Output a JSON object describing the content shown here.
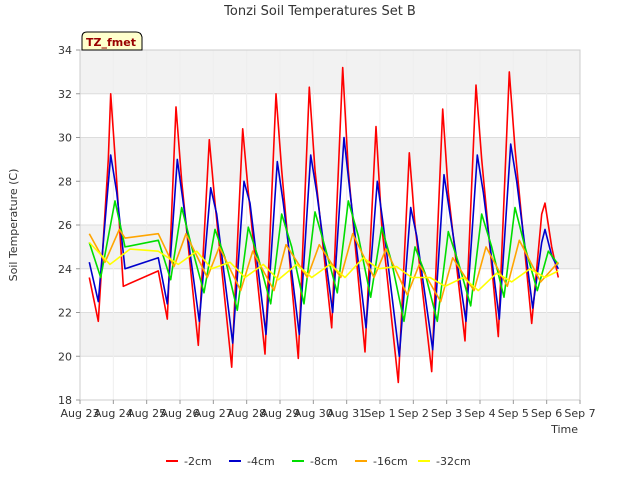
{
  "chart_data": {
    "type": "line",
    "title": "Tonzi Soil Temperatures Set B",
    "xlabel": "Time",
    "ylabel": "Soil Temperature (C)",
    "badge": "TZ_fmet",
    "ylim": [
      18,
      34
    ],
    "xlim": [
      0,
      15
    ],
    "yticks": [
      18,
      20,
      22,
      24,
      26,
      28,
      30,
      32,
      34
    ],
    "xticks": [
      0,
      1,
      2,
      3,
      4,
      5,
      6,
      7,
      8,
      9,
      10,
      11,
      12,
      13,
      14,
      15
    ],
    "xtick_labels": [
      "Aug 23",
      "Aug 24",
      "Aug 25",
      "Aug 26",
      "Aug 27",
      "Aug 28",
      "Aug 29",
      "Aug 30",
      "Aug 31",
      "Sep 1",
      "Sep 2",
      "Sep 3",
      "Sep 4",
      "Sep 5",
      "Sep 6",
      "Sep 7"
    ],
    "grid": true,
    "legend_position": "bottom",
    "series": [
      {
        "name": "-2cm",
        "color": "#ff0000",
        "points": [
          [
            0.28,
            23.6
          ],
          [
            0.55,
            21.6
          ],
          [
            0.85,
            29.0
          ],
          [
            0.92,
            32.0
          ],
          [
            1.08,
            28.5
          ],
          [
            1.3,
            23.2
          ],
          [
            2.35,
            23.9
          ],
          [
            2.62,
            21.7
          ],
          [
            2.88,
            31.4
          ],
          [
            3.05,
            28.0
          ],
          [
            3.55,
            20.5
          ],
          [
            3.88,
            29.9
          ],
          [
            4.05,
            27.0
          ],
          [
            4.55,
            19.5
          ],
          [
            4.88,
            30.4
          ],
          [
            5.05,
            27.5
          ],
          [
            5.55,
            20.1
          ],
          [
            5.88,
            32.0
          ],
          [
            6.05,
            28.5
          ],
          [
            6.55,
            19.9
          ],
          [
            6.88,
            32.3
          ],
          [
            7.05,
            28.5
          ],
          [
            7.55,
            21.3
          ],
          [
            7.88,
            33.2
          ],
          [
            8.05,
            28.5
          ],
          [
            8.55,
            20.2
          ],
          [
            8.88,
            30.5
          ],
          [
            9.05,
            26.0
          ],
          [
            9.55,
            18.8
          ],
          [
            9.88,
            29.3
          ],
          [
            10.05,
            26.0
          ],
          [
            10.55,
            19.3
          ],
          [
            10.88,
            31.3
          ],
          [
            11.05,
            27.5
          ],
          [
            11.55,
            20.7
          ],
          [
            11.88,
            32.4
          ],
          [
            12.05,
            29.0
          ],
          [
            12.55,
            20.9
          ],
          [
            12.88,
            33.0
          ],
          [
            13.05,
            29.5
          ],
          [
            13.55,
            21.5
          ],
          [
            13.85,
            26.5
          ],
          [
            13.95,
            27.0
          ],
          [
            14.15,
            25.0
          ],
          [
            14.35,
            23.6
          ]
        ]
      },
      {
        "name": "-4cm",
        "color": "#0000cc",
        "points": [
          [
            0.28,
            24.3
          ],
          [
            0.55,
            22.5
          ],
          [
            0.92,
            29.2
          ],
          [
            1.1,
            27.5
          ],
          [
            1.35,
            24.0
          ],
          [
            2.35,
            24.5
          ],
          [
            2.62,
            22.4
          ],
          [
            2.92,
            29.0
          ],
          [
            3.1,
            27.0
          ],
          [
            3.58,
            21.6
          ],
          [
            3.92,
            27.7
          ],
          [
            4.1,
            26.5
          ],
          [
            4.58,
            20.6
          ],
          [
            4.92,
            28.0
          ],
          [
            5.1,
            27.0
          ],
          [
            5.58,
            21.0
          ],
          [
            5.92,
            28.9
          ],
          [
            6.1,
            27.0
          ],
          [
            6.58,
            21.0
          ],
          [
            6.92,
            29.2
          ],
          [
            7.1,
            27.5
          ],
          [
            7.58,
            22.0
          ],
          [
            7.92,
            30.0
          ],
          [
            8.1,
            27.5
          ],
          [
            8.58,
            21.3
          ],
          [
            8.92,
            28.0
          ],
          [
            9.1,
            26.0
          ],
          [
            9.58,
            20.0
          ],
          [
            9.92,
            26.8
          ],
          [
            10.1,
            25.5
          ],
          [
            10.58,
            20.3
          ],
          [
            10.92,
            28.3
          ],
          [
            11.1,
            26.5
          ],
          [
            11.58,
            21.6
          ],
          [
            11.92,
            29.2
          ],
          [
            12.1,
            27.5
          ],
          [
            12.58,
            21.7
          ],
          [
            12.92,
            29.7
          ],
          [
            13.1,
            28.0
          ],
          [
            13.58,
            22.2
          ],
          [
            13.85,
            25.2
          ],
          [
            13.95,
            25.8
          ],
          [
            14.15,
            24.6
          ],
          [
            14.35,
            24.0
          ]
        ]
      },
      {
        "name": "-8cm",
        "color": "#00dd00",
        "points": [
          [
            0.28,
            25.2
          ],
          [
            0.62,
            23.6
          ],
          [
            1.05,
            27.1
          ],
          [
            1.35,
            25.0
          ],
          [
            2.35,
            25.3
          ],
          [
            2.72,
            23.5
          ],
          [
            3.05,
            26.8
          ],
          [
            3.35,
            25.0
          ],
          [
            3.72,
            22.9
          ],
          [
            4.05,
            25.8
          ],
          [
            4.35,
            24.5
          ],
          [
            4.72,
            22.1
          ],
          [
            5.05,
            25.9
          ],
          [
            5.35,
            24.5
          ],
          [
            5.72,
            22.4
          ],
          [
            6.05,
            26.5
          ],
          [
            6.35,
            25.0
          ],
          [
            6.72,
            22.4
          ],
          [
            7.05,
            26.6
          ],
          [
            7.35,
            25.0
          ],
          [
            7.72,
            22.9
          ],
          [
            8.05,
            27.1
          ],
          [
            8.35,
            25.5
          ],
          [
            8.72,
            22.7
          ],
          [
            9.05,
            25.9
          ],
          [
            9.35,
            24.3
          ],
          [
            9.72,
            21.6
          ],
          [
            10.05,
            25.0
          ],
          [
            10.35,
            23.8
          ],
          [
            10.72,
            21.6
          ],
          [
            11.05,
            25.7
          ],
          [
            11.35,
            24.3
          ],
          [
            11.72,
            22.3
          ],
          [
            12.05,
            26.5
          ],
          [
            12.35,
            25.0
          ],
          [
            12.72,
            22.7
          ],
          [
            13.05,
            26.8
          ],
          [
            13.35,
            25.0
          ],
          [
            13.72,
            23.0
          ],
          [
            14.05,
            24.8
          ],
          [
            14.35,
            24.2
          ]
        ]
      },
      {
        "name": "-16cm",
        "color": "#ffa500",
        "points": [
          [
            0.28,
            25.6
          ],
          [
            0.75,
            24.3
          ],
          [
            1.18,
            25.8
          ],
          [
            1.35,
            25.4
          ],
          [
            2.35,
            25.6
          ],
          [
            2.82,
            24.1
          ],
          [
            3.18,
            25.6
          ],
          [
            3.82,
            23.6
          ],
          [
            4.18,
            25.0
          ],
          [
            4.82,
            23.0
          ],
          [
            5.18,
            24.8
          ],
          [
            5.82,
            23.0
          ],
          [
            6.18,
            25.1
          ],
          [
            6.82,
            23.6
          ],
          [
            7.18,
            25.1
          ],
          [
            7.82,
            23.6
          ],
          [
            8.18,
            25.6
          ],
          [
            8.82,
            23.6
          ],
          [
            9.18,
            24.9
          ],
          [
            9.82,
            22.8
          ],
          [
            10.18,
            24.2
          ],
          [
            10.82,
            22.5
          ],
          [
            11.18,
            24.5
          ],
          [
            11.82,
            23.0
          ],
          [
            12.18,
            25.0
          ],
          [
            12.82,
            23.2
          ],
          [
            13.18,
            25.3
          ],
          [
            13.82,
            23.4
          ],
          [
            14.35,
            24.3
          ]
        ]
      },
      {
        "name": "-32cm",
        "color": "#ffff00",
        "points": [
          [
            0.28,
            25.2
          ],
          [
            0.9,
            24.2
          ],
          [
            1.5,
            24.9
          ],
          [
            2.35,
            24.8
          ],
          [
            2.95,
            24.2
          ],
          [
            3.5,
            24.8
          ],
          [
            3.95,
            24.0
          ],
          [
            4.5,
            24.3
          ],
          [
            4.95,
            23.6
          ],
          [
            5.5,
            24.2
          ],
          [
            5.95,
            23.5
          ],
          [
            6.5,
            24.2
          ],
          [
            6.95,
            23.6
          ],
          [
            7.5,
            24.2
          ],
          [
            7.95,
            23.6
          ],
          [
            8.5,
            24.5
          ],
          [
            8.95,
            24.0
          ],
          [
            9.5,
            24.1
          ],
          [
            9.95,
            23.6
          ],
          [
            10.5,
            23.6
          ],
          [
            10.95,
            23.2
          ],
          [
            11.5,
            23.6
          ],
          [
            11.95,
            23.0
          ],
          [
            12.5,
            23.8
          ],
          [
            12.95,
            23.4
          ],
          [
            13.5,
            24.0
          ],
          [
            13.95,
            23.6
          ],
          [
            14.35,
            23.9
          ]
        ]
      }
    ]
  }
}
